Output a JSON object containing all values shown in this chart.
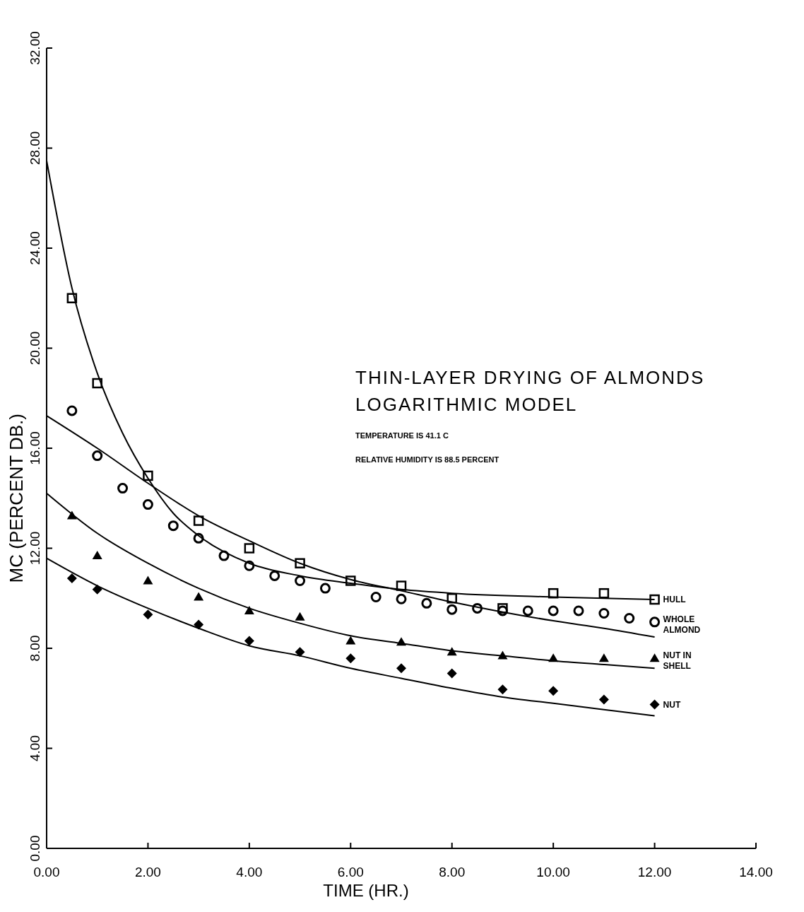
{
  "chart_data": {
    "type": "scatter",
    "title": "THIN-LAYER DRYING OF ALMONDS",
    "subtitle": "LOGARITHMIC MODEL",
    "xlabel": "TIME (HR.)",
    "ylabel": "MC (PERCENT DB.)",
    "annotations": [
      "TEMPERATURE IS 41.1 C",
      "RELATIVE HUMIDITY IS 88.5 PERCENT"
    ],
    "xlim": [
      0,
      14
    ],
    "ylim": [
      0,
      32
    ],
    "xticks": [
      {
        "value": 0,
        "label": "0.00"
      },
      {
        "value": 2,
        "label": "2.00"
      },
      {
        "value": 4,
        "label": "4.00"
      },
      {
        "value": 6,
        "label": "6.00"
      },
      {
        "value": 8,
        "label": "8.00"
      },
      {
        "value": 10,
        "label": "10.00"
      },
      {
        "value": 12,
        "label": "12.00"
      },
      {
        "value": 14,
        "label": "14.00"
      }
    ],
    "yticks": [
      {
        "value": 0,
        "label": "0.00"
      },
      {
        "value": 4,
        "label": "4.00"
      },
      {
        "value": 8,
        "label": "8.00"
      },
      {
        "value": 12,
        "label": "12.00"
      },
      {
        "value": 16,
        "label": "16.00"
      },
      {
        "value": 20,
        "label": "20.00"
      },
      {
        "value": 24,
        "label": "24.00"
      },
      {
        "value": 28,
        "label": "28.00"
      },
      {
        "value": 32,
        "label": "32.00"
      }
    ],
    "grid": false,
    "legend": "right",
    "series": [
      {
        "name": "HULL",
        "marker": "square",
        "color": "#000000",
        "x": [
          0.5,
          1,
          2,
          3,
          4,
          5,
          6,
          7,
          8,
          9,
          10,
          11,
          12
        ],
        "values": [
          22.0,
          18.6,
          14.9,
          13.1,
          12.0,
          11.4,
          10.7,
          10.5,
          10.0,
          9.6,
          10.2,
          10.2,
          9.95
        ]
      },
      {
        "name": "WHOLE ALMOND",
        "marker": "circle",
        "color": "#000000",
        "x": [
          0.5,
          1,
          1.5,
          2,
          2.5,
          3,
          3.5,
          4,
          4.5,
          5,
          5.5,
          6.5,
          7,
          7.5,
          8,
          8.5,
          9,
          9.5,
          10,
          10.5,
          11,
          11.5,
          12
        ],
        "values": [
          17.5,
          15.7,
          14.4,
          13.75,
          12.9,
          12.4,
          11.7,
          11.3,
          10.9,
          10.7,
          10.4,
          10.05,
          9.97,
          9.8,
          9.55,
          9.6,
          9.5,
          9.5,
          9.5,
          9.5,
          9.4,
          9.2,
          9.05
        ]
      },
      {
        "name": "NUT IN SHELL",
        "marker": "triangle",
        "color": "#000000",
        "x": [
          0.5,
          1,
          2,
          3,
          4,
          5,
          6,
          7,
          8,
          9,
          10,
          11,
          12
        ],
        "values": [
          13.3,
          11.7,
          10.7,
          10.05,
          9.5,
          9.25,
          8.3,
          8.25,
          7.85,
          7.7,
          7.6,
          7.6,
          7.6
        ]
      },
      {
        "name": "NUT",
        "marker": "diamond",
        "color": "#000000",
        "x": [
          0.5,
          1,
          2,
          3,
          4,
          5,
          6,
          7,
          8,
          9,
          10,
          11,
          12
        ],
        "values": [
          10.8,
          10.35,
          9.35,
          8.95,
          8.3,
          7.85,
          7.6,
          7.2,
          7.0,
          6.35,
          6.3,
          5.95,
          5.75
        ]
      },
      {
        "type": "line",
        "color": "#000000",
        "x": [
          0,
          0.5,
          1,
          1.5,
          2,
          2.5,
          3,
          4,
          5,
          6,
          7,
          8,
          10,
          12
        ],
        "values": [
          27.5,
          22.4,
          19.0,
          16.6,
          14.8,
          13.4,
          12.5,
          11.4,
          10.9,
          10.6,
          10.35,
          10.2,
          10.05,
          9.95
        ]
      },
      {
        "type": "line",
        "color": "#000000",
        "x": [
          0,
          1,
          2,
          3,
          4,
          5,
          6,
          7,
          8,
          9,
          10,
          11,
          12
        ],
        "values": [
          17.3,
          16.0,
          14.6,
          13.3,
          12.3,
          11.4,
          10.75,
          10.3,
          9.85,
          9.45,
          9.1,
          8.8,
          8.45
        ]
      },
      {
        "type": "line",
        "color": "#000000",
        "x": [
          0,
          1,
          2,
          3,
          4,
          5,
          6,
          7,
          8,
          9,
          10,
          11,
          12
        ],
        "values": [
          14.2,
          12.6,
          11.4,
          10.4,
          9.6,
          9.0,
          8.5,
          8.2,
          7.9,
          7.7,
          7.5,
          7.35,
          7.2
        ]
      },
      {
        "type": "line",
        "color": "#000000",
        "x": [
          0,
          1,
          2,
          3,
          4,
          5,
          6,
          7,
          8,
          9,
          10,
          11,
          12
        ],
        "values": [
          11.6,
          10.5,
          9.6,
          8.8,
          8.1,
          7.7,
          7.2,
          6.8,
          6.4,
          6.05,
          5.8,
          5.55,
          5.3
        ]
      }
    ]
  }
}
